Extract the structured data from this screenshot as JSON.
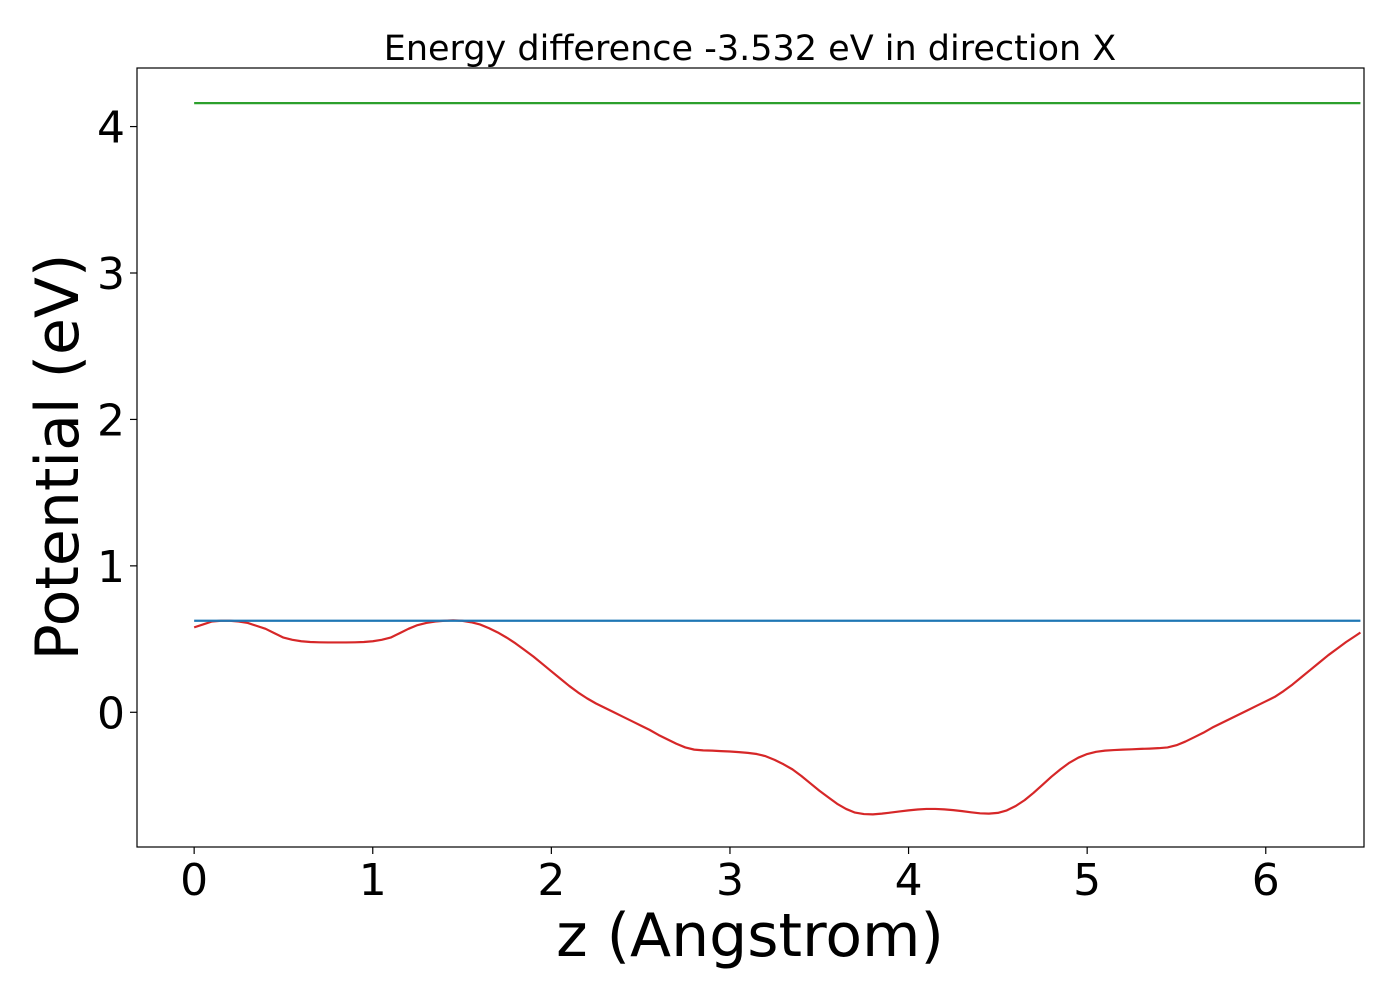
{
  "chart_data": {
    "type": "line",
    "title": "Energy difference -3.532 eV in direction X",
    "xlabel": "z (Angstrom)",
    "ylabel": "Potential (eV)",
    "xlim": [
      -0.32,
      6.55
    ],
    "ylim": [
      -0.92,
      4.4
    ],
    "xticks": [
      0,
      1,
      2,
      3,
      4,
      5,
      6
    ],
    "yticks": [
      0,
      1,
      2,
      3,
      4
    ],
    "grid": false,
    "series": [
      {
        "color": "#d62728",
        "x": [
          0,
          0.05,
          0.1,
          0.15,
          0.2,
          0.25,
          0.3,
          0.35,
          0.4,
          0.45,
          0.5,
          0.55,
          0.6,
          0.65,
          0.7,
          0.75,
          0.8,
          0.85,
          0.9,
          0.95,
          1.0,
          1.05,
          1.1,
          1.15,
          1.2,
          1.25,
          1.3,
          1.35,
          1.4,
          1.45,
          1.5,
          1.55,
          1.6,
          1.65,
          1.7,
          1.75,
          1.8,
          1.85,
          1.9,
          1.95,
          2.0,
          2.05,
          2.1,
          2.15,
          2.2,
          2.25,
          2.3,
          2.35,
          2.4,
          2.45,
          2.5,
          2.55,
          2.6,
          2.65,
          2.7,
          2.75,
          2.8,
          2.85,
          2.9,
          2.95,
          3.0,
          3.05,
          3.1,
          3.15,
          3.2,
          3.25,
          3.3,
          3.35,
          3.4,
          3.45,
          3.5,
          3.55,
          3.6,
          3.65,
          3.7,
          3.75,
          3.8,
          3.85,
          3.9,
          3.95,
          4.0,
          4.05,
          4.1,
          4.15,
          4.2,
          4.25,
          4.3,
          4.35,
          4.4,
          4.45,
          4.5,
          4.55,
          4.6,
          4.65,
          4.7,
          4.75,
          4.8,
          4.85,
          4.9,
          4.95,
          5.0,
          5.05,
          5.1,
          5.15,
          5.2,
          5.25,
          5.3,
          5.35,
          5.4,
          5.45,
          5.5,
          5.55,
          5.6,
          5.65,
          5.7,
          5.75,
          5.8,
          5.85,
          5.9,
          5.95,
          6.0,
          6.05,
          6.1,
          6.15,
          6.2,
          6.25,
          6.3,
          6.35,
          6.4,
          6.45,
          6.5,
          6.53
        ],
        "y": [
          0.58,
          0.6,
          0.62,
          0.625,
          0.625,
          0.62,
          0.61,
          0.59,
          0.57,
          0.54,
          0.51,
          0.495,
          0.485,
          0.48,
          0.478,
          0.477,
          0.477,
          0.477,
          0.478,
          0.48,
          0.485,
          0.495,
          0.51,
          0.54,
          0.57,
          0.595,
          0.61,
          0.62,
          0.625,
          0.628,
          0.625,
          0.615,
          0.6,
          0.575,
          0.545,
          0.51,
          0.47,
          0.425,
          0.38,
          0.33,
          0.28,
          0.23,
          0.18,
          0.135,
          0.095,
          0.06,
          0.03,
          0.0,
          -0.03,
          -0.06,
          -0.09,
          -0.12,
          -0.155,
          -0.185,
          -0.215,
          -0.24,
          -0.255,
          -0.26,
          -0.262,
          -0.265,
          -0.268,
          -0.272,
          -0.277,
          -0.285,
          -0.3,
          -0.325,
          -0.355,
          -0.39,
          -0.435,
          -0.485,
          -0.535,
          -0.58,
          -0.625,
          -0.66,
          -0.685,
          -0.695,
          -0.697,
          -0.692,
          -0.685,
          -0.677,
          -0.67,
          -0.664,
          -0.66,
          -0.66,
          -0.663,
          -0.668,
          -0.675,
          -0.683,
          -0.69,
          -0.692,
          -0.687,
          -0.67,
          -0.64,
          -0.6,
          -0.55,
          -0.495,
          -0.44,
          -0.39,
          -0.345,
          -0.31,
          -0.285,
          -0.27,
          -0.262,
          -0.258,
          -0.255,
          -0.253,
          -0.25,
          -0.248,
          -0.245,
          -0.24,
          -0.225,
          -0.2,
          -0.17,
          -0.14,
          -0.105,
          -0.075,
          -0.045,
          -0.015,
          0.015,
          0.045,
          0.075,
          0.105,
          0.145,
          0.19,
          0.24,
          0.29,
          0.34,
          0.39,
          0.435,
          0.48,
          0.52,
          0.545
        ]
      },
      {
        "color": "#1f77b4",
        "x": [
          0,
          6.53
        ],
        "y": [
          0.625,
          0.625
        ]
      },
      {
        "color": "#2ca02c",
        "x": [
          0,
          6.53
        ],
        "y": [
          4.16,
          4.16
        ]
      }
    ]
  }
}
